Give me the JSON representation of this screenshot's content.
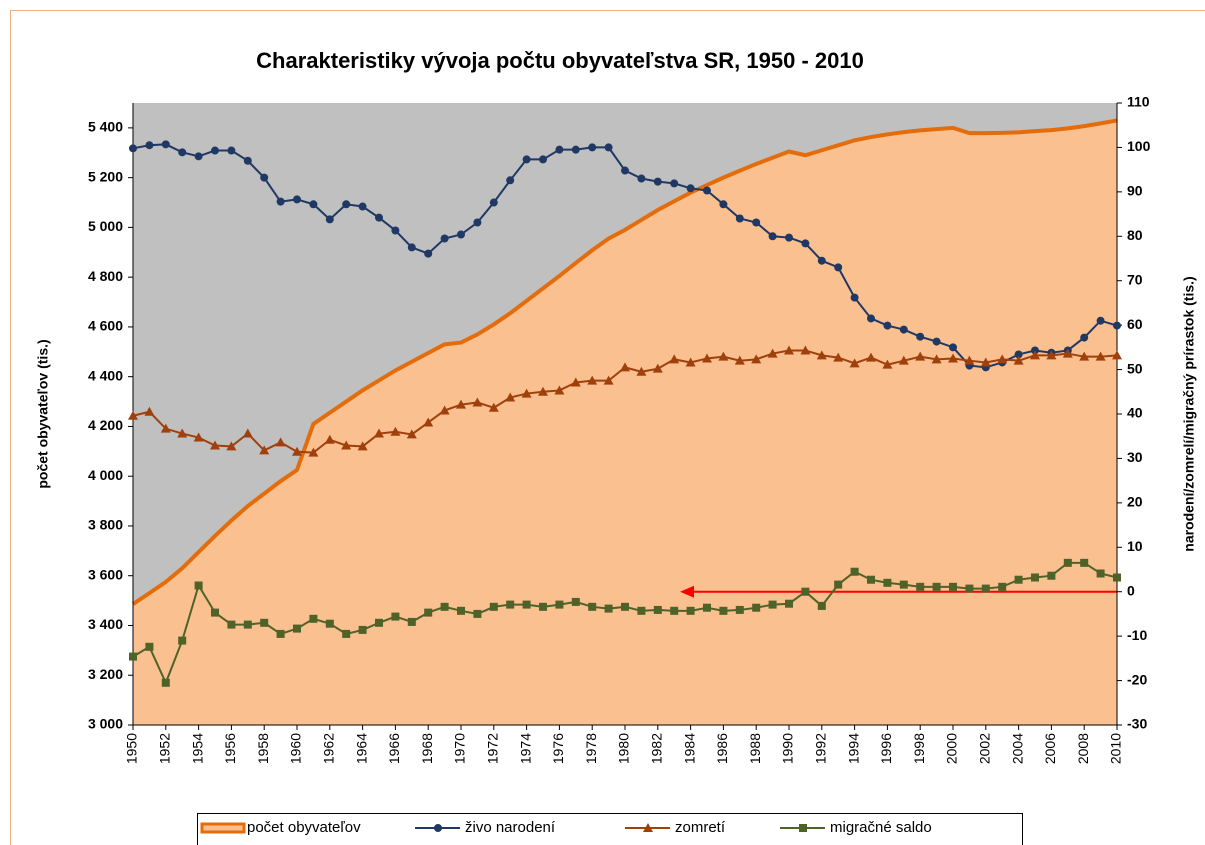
{
  "chart_data": {
    "type": "line",
    "title": "Charakteristiky vývoja počtu obyvateľstva SR, 1950 - 2010",
    "y_label": "počet obyvateľov (tis.)",
    "y2_label": "narodení/zomrelí/migračný prírastok (tis.)",
    "x": [
      1950,
      1951,
      1952,
      1953,
      1954,
      1955,
      1956,
      1957,
      1958,
      1959,
      1960,
      1961,
      1962,
      1963,
      1964,
      1965,
      1966,
      1967,
      1968,
      1969,
      1970,
      1971,
      1972,
      1973,
      1974,
      1975,
      1976,
      1977,
      1978,
      1979,
      1980,
      1981,
      1982,
      1983,
      1984,
      1985,
      1986,
      1987,
      1988,
      1989,
      1990,
      1991,
      1992,
      1993,
      1994,
      1995,
      1996,
      1997,
      1998,
      1999,
      2000,
      2001,
      2002,
      2003,
      2004,
      2005,
      2006,
      2007,
      2008,
      2009,
      2010
    ],
    "xlim": [
      1950,
      2010
    ],
    "xticks": [
      1950,
      1952,
      1954,
      1956,
      1958,
      1960,
      1962,
      1964,
      1966,
      1968,
      1970,
      1972,
      1974,
      1976,
      1978,
      1980,
      1982,
      1984,
      1986,
      1988,
      1990,
      1992,
      1994,
      1996,
      1998,
      2000,
      2002,
      2004,
      2006,
      2008,
      2010
    ],
    "ylim": [
      3000,
      5500
    ],
    "yticks": [
      {
        "value": 3000,
        "label": "3 000"
      },
      {
        "value": 3200,
        "label": "3 200"
      },
      {
        "value": 3400,
        "label": "3 400"
      },
      {
        "value": 3600,
        "label": "3 600"
      },
      {
        "value": 3800,
        "label": "3 800"
      },
      {
        "value": 4000,
        "label": "4 000"
      },
      {
        "value": 4200,
        "label": "4 200"
      },
      {
        "value": 4400,
        "label": "4 400"
      },
      {
        "value": 4600,
        "label": "4 600"
      },
      {
        "value": 4800,
        "label": "4 800"
      },
      {
        "value": 5000,
        "label": "5 000"
      },
      {
        "value": 5200,
        "label": "5 200"
      },
      {
        "value": 5400,
        "label": "5 400"
      }
    ],
    "y2lim": [
      -30,
      110
    ],
    "y2ticks": [
      -30,
      -20,
      -10,
      0,
      10,
      20,
      30,
      40,
      50,
      60,
      70,
      80,
      90,
      100,
      110
    ],
    "plot_background": "#c0c0c0",
    "legend": "bottom",
    "series": [
      {
        "name": "počet obyvateľov",
        "color": "#e46c0a",
        "fill": "#fac090",
        "axis": "y",
        "values": [
          3486,
          3530,
          3575,
          3630,
          3695,
          3760,
          3822,
          3880,
          3930,
          3980,
          4025,
          4210,
          4255,
          4300,
          4345,
          4385,
          4425,
          4460,
          4495,
          4530,
          4537,
          4570,
          4610,
          4655,
          4705,
          4755,
          4805,
          4857,
          4908,
          4955,
          4990,
          5030,
          5070,
          5105,
          5140,
          5170,
          5200,
          5228,
          5255,
          5280,
          5305,
          5290,
          5310,
          5330,
          5350,
          5363,
          5374,
          5383,
          5390,
          5395,
          5400,
          5379,
          5379,
          5380,
          5382,
          5387,
          5391,
          5398,
          5407,
          5418,
          5430
        ]
      },
      {
        "name": "živo narodení",
        "color": "#1f3864",
        "axis": "y2",
        "marker": "circle",
        "values": [
          99.8,
          100.5,
          100.7,
          98.9,
          98,
          99.3,
          99.3,
          97,
          93.2,
          87.8,
          88.3,
          87.2,
          83.8,
          87.2,
          86.7,
          84.2,
          81.3,
          77.5,
          76.1,
          79.5,
          80.4,
          83.1,
          87.6,
          92.6,
          97.3,
          97.3,
          99.5,
          99.5,
          100,
          100,
          94.8,
          93,
          92.3,
          91.9,
          90.8,
          90.3,
          87.2,
          84,
          83.1,
          80,
          79.7,
          78.4,
          74.5,
          73,
          66.2,
          61.5,
          59.9,
          59,
          57.4,
          56.3,
          55,
          50.9,
          50.5,
          51.6,
          53.4,
          54.3,
          53.8,
          54.3,
          57.2,
          61,
          59.9
        ]
      },
      {
        "name": "zomretí",
        "color": "#a0400c",
        "axis": "y2",
        "marker": "triangle",
        "values": [
          39.6,
          40.5,
          36.7,
          35.6,
          34.7,
          32.9,
          32.7,
          35.6,
          31.8,
          33.6,
          31.5,
          31.3,
          34.2,
          32.9,
          32.7,
          35.6,
          36,
          35.4,
          38.1,
          40.8,
          42.1,
          42.6,
          41.4,
          43.7,
          44.6,
          45,
          45.3,
          47.1,
          47.5,
          47.5,
          50.5,
          49.5,
          50.2,
          52.3,
          51.6,
          52.5,
          52.9,
          52,
          52.3,
          53.6,
          54.3,
          54.3,
          53.2,
          52.7,
          51.4,
          52.7,
          51.1,
          52,
          52.9,
          52.3,
          52.5,
          52,
          51.6,
          52.3,
          52,
          53.2,
          53.2,
          53.6,
          52.9,
          52.9,
          53.2
        ]
      },
      {
        "name": "migračné saldo",
        "color": "#4f6228",
        "axis": "y2",
        "marker": "square",
        "values": [
          -14.6,
          -12.4,
          -20.5,
          -11,
          1.4,
          -4.7,
          -7.4,
          -7.4,
          -7,
          -9.5,
          -8.3,
          -6.1,
          -7.2,
          -9.5,
          -8.6,
          -7,
          -5.6,
          -6.8,
          -4.7,
          -3.4,
          -4.3,
          -5,
          -3.4,
          -2.9,
          -2.9,
          -3.4,
          -2.9,
          -2.3,
          -3.4,
          -3.8,
          -3.4,
          -4.3,
          -4.1,
          -4.3,
          -4.3,
          -3.6,
          -4.3,
          -4.1,
          -3.6,
          -2.9,
          -2.7,
          0,
          -3.2,
          1.6,
          4.5,
          2.7,
          2,
          1.6,
          1.1,
          1.1,
          1.1,
          0.7,
          0.7,
          1.1,
          2.7,
          3.2,
          3.6,
          6.5,
          6.5,
          4.1,
          3.2
        ]
      }
    ]
  }
}
